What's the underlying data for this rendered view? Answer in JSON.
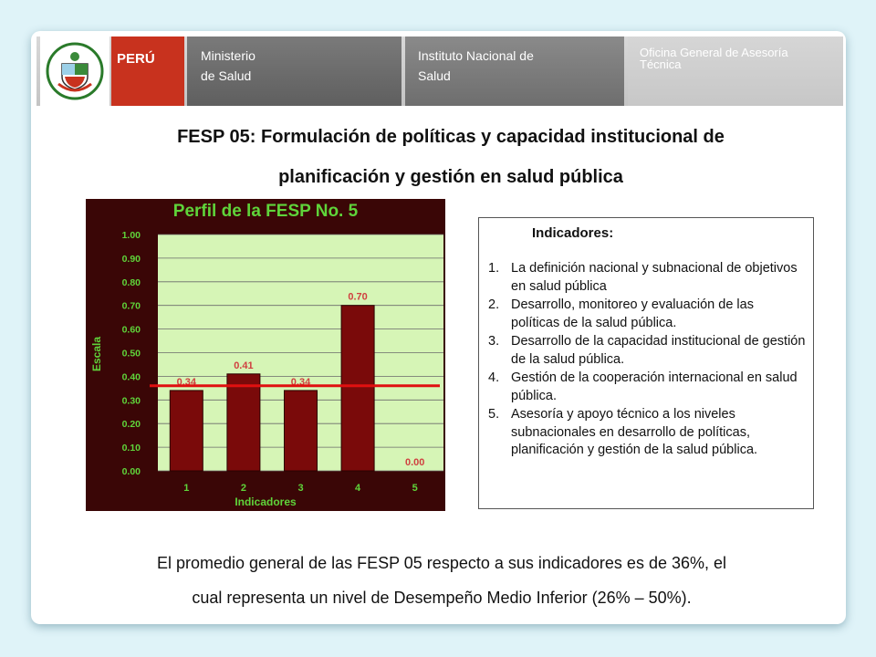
{
  "header": {
    "emblem_text": "REPUBLICA DEL PERU",
    "sections": [
      "PERÚ",
      "Ministerio",
      "de Salud",
      "Instituto Nacional de",
      "Salud",
      "Oficina General de Asesoría",
      "Técnica"
    ]
  },
  "slide": {
    "title_line1": "FESP 05: Formulación de políticas y capacidad institucional de",
    "title_line2": "planificación y gestión en salud pública"
  },
  "chart_data": {
    "type": "bar",
    "title": "Perfil de la FESP No. 5",
    "xlabel": "Indicadores",
    "ylabel": "Escala",
    "categories": [
      "1",
      "2",
      "3",
      "4",
      "5"
    ],
    "values": [
      0.34,
      0.41,
      0.34,
      0.7,
      0.0
    ],
    "value_labels": [
      "0.34",
      "0.41",
      "0.34",
      "0.70",
      "0.00"
    ],
    "ylim": [
      0,
      1
    ],
    "yticks": [
      "0.00",
      "0.10",
      "0.20",
      "0.30",
      "0.40",
      "0.50",
      "0.60",
      "0.70",
      "0.80",
      "0.90",
      "1.00"
    ],
    "reference_line": 0.36,
    "grid": true,
    "colors": {
      "background": "#3a0606",
      "plot": "#d6f5b6",
      "bar": "#7a0a0a",
      "line": "#e01010",
      "text": "#5fd43a",
      "labels": "#d04040"
    }
  },
  "indicators": {
    "title": "Indicadores:",
    "items": [
      {
        "num": "1.",
        "text": "La definición nacional y subnacional de objetivos en salud pública"
      },
      {
        "num": "2.",
        "text": "Desarrollo, monitoreo y evaluación de las políticas de la salud pública."
      },
      {
        "num": "3.",
        "text": "Desarrollo de la capacidad institucional de gestión de la salud pública."
      },
      {
        "num": "4.",
        "text": "Gestión de la cooperación internacional en salud pública."
      },
      {
        "num": "5.",
        "text": "Asesoría y apoyo técnico a los niveles subnacionales en desarrollo de políticas, planificación y gestión de la salud pública."
      }
    ]
  },
  "footer": {
    "line1": "El promedio general de las FESP 05 respecto a sus indicadores es de 36%, el",
    "line2": "cual representa un nivel de Desempeño Medio Inferior (26% – 50%)."
  }
}
